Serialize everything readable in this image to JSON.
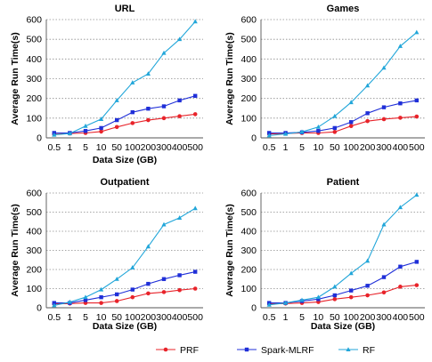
{
  "chart_data": [
    {
      "type": "line",
      "title": "URL",
      "xlabel": "Data Size (GB)",
      "ylabel": "Average Run Time(s)",
      "categories": [
        "0.5",
        "1",
        "5",
        "10",
        "50",
        "100",
        "200",
        "300",
        "400",
        "500"
      ],
      "ylim": [
        0,
        600
      ],
      "yticks": [
        "0",
        "100",
        "200",
        "300",
        "400",
        "500",
        "600"
      ],
      "grid": true,
      "series": [
        {
          "name": "PRF",
          "color": "#e8232a",
          "values": [
            18,
            22,
            25,
            32,
            55,
            75,
            90,
            100,
            110,
            120
          ]
        },
        {
          "name": "Spark-MLRF",
          "color": "#1f2fd8",
          "values": [
            25,
            25,
            35,
            50,
            90,
            130,
            148,
            160,
            190,
            213
          ]
        },
        {
          "name": "RF",
          "color": "#21a6d9",
          "values": [
            15,
            22,
            60,
            95,
            190,
            280,
            325,
            430,
            500,
            590
          ]
        }
      ]
    },
    {
      "type": "line",
      "title": "Games",
      "xlabel": "",
      "ylabel": "Average Run Time(s)",
      "categories": [
        "0.5",
        "1",
        "5",
        "10",
        "50",
        "100",
        "200",
        "300",
        "400",
        "500"
      ],
      "ylim": [
        0,
        600
      ],
      "yticks": [
        "0",
        "100",
        "200",
        "300",
        "400",
        "500",
        "600"
      ],
      "grid": true,
      "series": [
        {
          "name": "PRF",
          "color": "#e8232a",
          "values": [
            20,
            22,
            25,
            25,
            30,
            60,
            85,
            95,
            102,
            108
          ]
        },
        {
          "name": "Spark-MLRF",
          "color": "#1f2fd8",
          "values": [
            25,
            25,
            28,
            35,
            50,
            80,
            125,
            155,
            175,
            190
          ]
        },
        {
          "name": "RF",
          "color": "#21a6d9",
          "values": [
            12,
            20,
            30,
            55,
            110,
            180,
            265,
            355,
            465,
            535
          ]
        }
      ]
    },
    {
      "type": "line",
      "title": "Outpatient",
      "xlabel": "Data Size (GB)",
      "ylabel": "Average Run Time(s)",
      "categories": [
        "0.5",
        "1",
        "5",
        "10",
        "50",
        "100",
        "200",
        "300",
        "400",
        "500"
      ],
      "ylim": [
        0,
        600
      ],
      "yticks": [
        "0",
        "100",
        "200",
        "300",
        "400",
        "500",
        "600"
      ],
      "grid": true,
      "series": [
        {
          "name": "PRF",
          "color": "#e8232a",
          "values": [
            20,
            22,
            25,
            25,
            35,
            55,
            75,
            82,
            92,
            100
          ]
        },
        {
          "name": "Spark-MLRF",
          "color": "#1f2fd8",
          "values": [
            25,
            25,
            40,
            55,
            70,
            95,
            125,
            150,
            170,
            188
          ]
        },
        {
          "name": "RF",
          "color": "#21a6d9",
          "values": [
            12,
            30,
            55,
            95,
            150,
            210,
            320,
            435,
            470,
            520
          ]
        }
      ]
    },
    {
      "type": "line",
      "title": "Patient",
      "xlabel": "Data Size (GB)",
      "ylabel": "Average Run Time(s)",
      "categories": [
        "0.5",
        "1",
        "5",
        "10",
        "50",
        "100",
        "200",
        "300",
        "400",
        "500"
      ],
      "ylim": [
        0,
        600
      ],
      "yticks": [
        "0",
        "100",
        "200",
        "300",
        "400",
        "500",
        "600"
      ],
      "grid": true,
      "series": [
        {
          "name": "PRF",
          "color": "#e8232a",
          "values": [
            20,
            22,
            25,
            30,
            45,
            55,
            65,
            80,
            110,
            118
          ]
        },
        {
          "name": "Spark-MLRF",
          "color": "#1f2fd8",
          "values": [
            25,
            25,
            35,
            45,
            65,
            90,
            115,
            160,
            215,
            240
          ]
        },
        {
          "name": "RF",
          "color": "#21a6d9",
          "values": [
            15,
            25,
            40,
            55,
            110,
            180,
            245,
            435,
            525,
            590
          ]
        }
      ]
    }
  ],
  "legend": [
    {
      "label": "PRF",
      "color": "#e8232a",
      "marker": "circle"
    },
    {
      "label": "Spark-MLRF",
      "color": "#1f2fd8",
      "marker": "square"
    },
    {
      "label": "RF",
      "color": "#21a6d9",
      "marker": "triangle"
    }
  ]
}
